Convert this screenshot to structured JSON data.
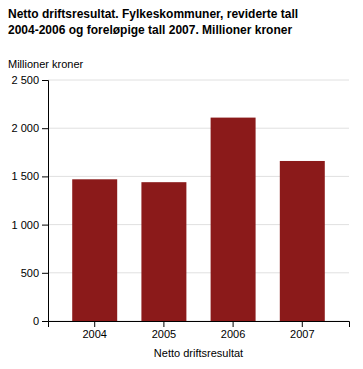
{
  "chart_data": {
    "type": "bar",
    "title": "Netto driftsresultat. Fylkeskommuner, reviderte tall",
    "subtitle": "2004-2006 og foreløpige tall 2007. Millioner kroner",
    "ylabel": "Millioner kroner",
    "xlabel": "Netto driftsresultat",
    "categories": [
      "2004",
      "2005",
      "2006",
      "2007"
    ],
    "values": [
      1470,
      1440,
      2110,
      1660
    ],
    "color": "#8B1A1A",
    "ylim": [
      0,
      2500
    ],
    "yticks": [
      0,
      500,
      {
        "value": 1000,
        "label": "1 000"
      },
      {
        "value": 1500,
        "label": "1 500"
      },
      {
        "value": 2000,
        "label": "2 000"
      },
      {
        "value": 2500,
        "label": "2 500"
      }
    ],
    "grid": true
  }
}
